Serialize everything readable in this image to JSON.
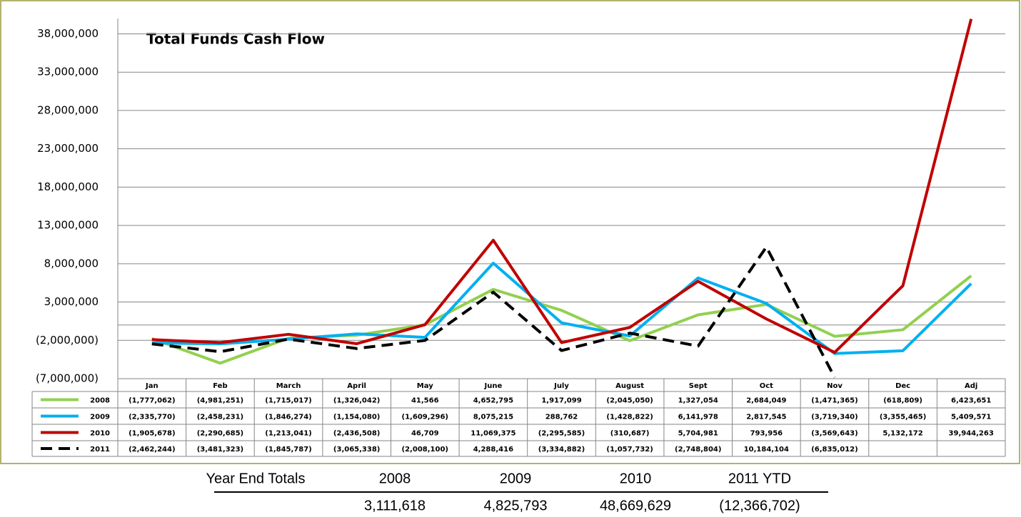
{
  "chart_data": {
    "type": "line",
    "title": "Total Funds Cash Flow",
    "categories": [
      "Jan",
      "Feb",
      "March",
      "April",
      "May",
      "June",
      "July",
      "August",
      "Sept",
      "Oct",
      "Nov",
      "Dec",
      "Adj"
    ],
    "series": [
      {
        "name": "2008",
        "color": "#92d050",
        "dash": false,
        "values": [
          -1777062,
          -4981251,
          -1715017,
          -1326042,
          41566,
          4652795,
          1917099,
          -2045050,
          1327054,
          2684049,
          -1471365,
          -618809,
          6423651
        ],
        "value_labels": [
          "(1,777,062)",
          "(4,981,251)",
          "(1,715,017)",
          "(1,326,042)",
          "41,566",
          "4,652,795",
          "1,917,099",
          "(2,045,050)",
          "1,327,054",
          "2,684,049",
          "(1,471,365)",
          "(618,809)",
          "6,423,651"
        ]
      },
      {
        "name": "2009",
        "color": "#00b0f0",
        "dash": false,
        "values": [
          -2335770,
          -2458231,
          -1846274,
          -1154080,
          -1609296,
          8075215,
          288762,
          -1428822,
          6141978,
          2817545,
          -3719340,
          -3355465,
          5409571
        ],
        "value_labels": [
          "(2,335,770)",
          "(2,458,231)",
          "(1,846,274)",
          "(1,154,080)",
          "(1,609,296)",
          "8,075,215",
          "288,762",
          "(1,428,822)",
          "6,141,978",
          "2,817,545",
          "(3,719,340)",
          "(3,355,465)",
          "5,409,571"
        ]
      },
      {
        "name": "2010",
        "color": "#c00000",
        "dash": false,
        "values": [
          -1905678,
          -2290685,
          -1213041,
          -2436508,
          46709,
          11069375,
          -2295585,
          -310687,
          5704981,
          793956,
          -3569643,
          5132172,
          39944263
        ],
        "value_labels": [
          "(1,905,678)",
          "(2,290,685)",
          "(1,213,041)",
          "(2,436,508)",
          "46,709",
          "11,069,375",
          "(2,295,585)",
          "(310,687)",
          "5,704,981",
          "793,956",
          "(3,569,643)",
          "5,132,172",
          "39,944,263"
        ]
      },
      {
        "name": "2011",
        "color": "#000000",
        "dash": true,
        "values": [
          -2462244,
          -3481323,
          -1845787,
          -3065338,
          -2008100,
          4288416,
          -3334882,
          -1057732,
          -2748804,
          10184104,
          -6835012,
          null,
          null
        ],
        "value_labels": [
          "(2,462,244)",
          "(3,481,323)",
          "(1,845,787)",
          "(3,065,338)",
          "(2,008,100)",
          "4,288,416",
          "(3,334,882)",
          "(1,057,732)",
          "(2,748,804)",
          "10,184,104",
          "(6,835,012)",
          null,
          null
        ]
      }
    ],
    "ylim": [
      -7000000,
      40000000
    ],
    "yticks": [
      {
        "value": -7000000,
        "label": "(7,000,000)"
      },
      {
        "value": -2000000,
        "label": "(2,000,000)"
      },
      {
        "value": 3000000,
        "label": "3,000,000"
      },
      {
        "value": 8000000,
        "label": "8,000,000"
      },
      {
        "value": 13000000,
        "label": "13,000,000"
      },
      {
        "value": 18000000,
        "label": "18,000,000"
      },
      {
        "value": 23000000,
        "label": "23,000,000"
      },
      {
        "value": 28000000,
        "label": "28,000,000"
      },
      {
        "value": 33000000,
        "label": "33,000,000"
      },
      {
        "value": 38000000,
        "label": "38,000,000"
      }
    ],
    "grid": true
  },
  "year_end_totals": {
    "label": "Year End Totals",
    "headers": [
      "2008",
      "2009",
      "2010",
      "2011 YTD"
    ],
    "values": [
      "3,111,618",
      "4,825,793",
      "48,669,629",
      "(12,366,702)"
    ]
  }
}
